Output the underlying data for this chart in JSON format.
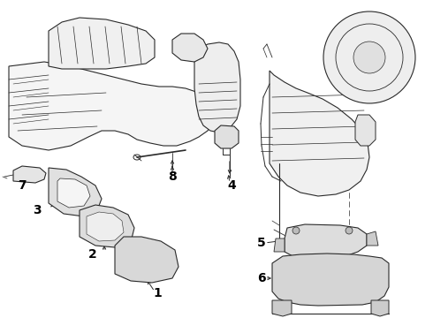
{
  "background_color": "#ffffff",
  "line_color": "#2a2a2a",
  "label_color": "#000000",
  "fig_width": 4.9,
  "fig_height": 3.6,
  "dpi": 100,
  "border_color": "#bbbbbb",
  "label_fontsize": 10,
  "arrow_lw": 0.7
}
